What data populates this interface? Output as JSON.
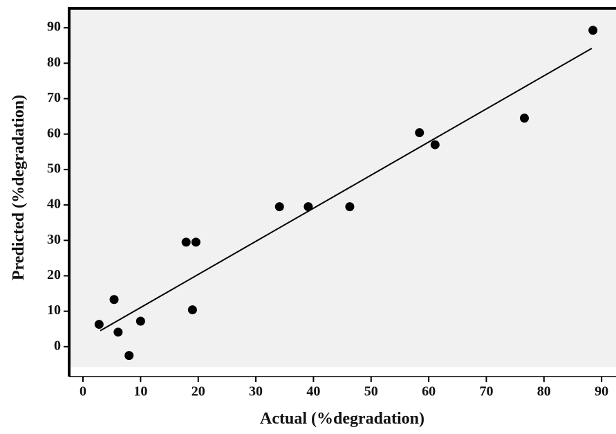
{
  "chart_data": {
    "type": "scatter",
    "x_label": "Actual (%degradation)",
    "y_label": "Predicted (%degradation)",
    "series": [
      {
        "color": "#000000",
        "x": [
          2.8,
          5.4,
          6.1,
          8.0,
          10.0,
          17.9,
          19.6,
          19.0,
          34.1,
          39.1,
          46.3,
          58.4,
          61.1,
          76.6,
          88.5
        ],
        "values": [
          6.3,
          13.3,
          4.1,
          -2.5,
          7.2,
          29.5,
          29.5,
          10.4,
          39.5,
          39.5,
          39.5,
          60.4,
          57.0,
          64.5,
          89.3
        ]
      }
    ],
    "fit_line": {
      "color": "#000000",
      "x": [
        3.0,
        88.3
      ],
      "values": [
        4.5,
        84.2
      ]
    },
    "xlim": [
      -2.4,
      92.5
    ],
    "ylim": [
      -5.7,
      95.5
    ],
    "xticks": [
      0,
      10,
      20,
      30,
      40,
      50,
      60,
      70,
      80,
      90
    ],
    "yticks": [
      0,
      10,
      20,
      30,
      40,
      50,
      60,
      70,
      80,
      90
    ]
  }
}
